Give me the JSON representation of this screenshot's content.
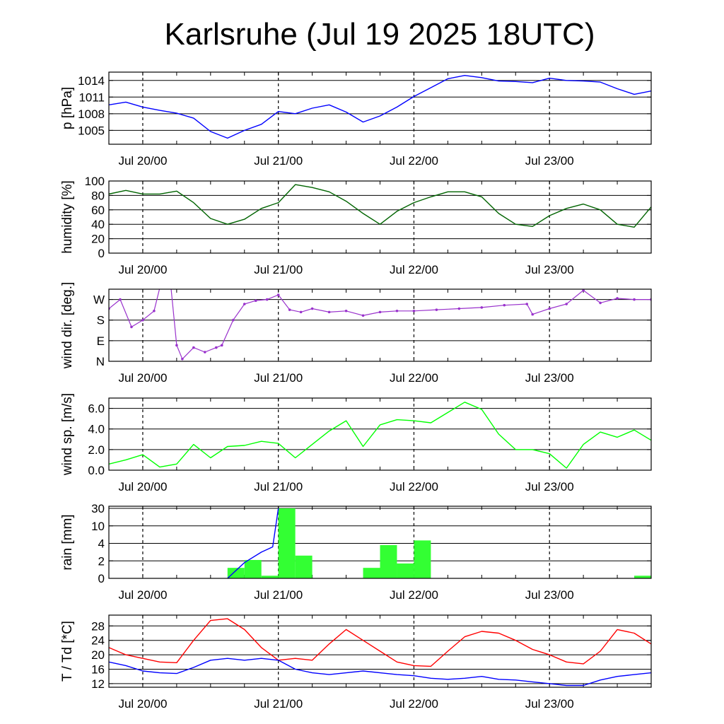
{
  "title": "Karlsruhe (Jul 19 2025 18UTC)",
  "chart_data": {
    "type": "line",
    "x_range": [
      "2025-07-19T18:00",
      "2025-07-23T18:00"
    ],
    "x_ticks": [
      {
        "x": "2025-07-20T00:00",
        "label": "Jul 20/00"
      },
      {
        "x": "2025-07-21T00:00",
        "label": "Jul 21/00"
      },
      {
        "x": "2025-07-22T00:00",
        "label": "Jul 22/00"
      },
      {
        "x": "2025-07-23T00:00",
        "label": "Jul 23/00"
      }
    ],
    "grid": "horizontal at y ticks, dashed vertical at day boundaries",
    "panels": [
      {
        "id": "pressure",
        "ylabel": "p [hPa]",
        "ylim": [
          1002.5,
          1015.5
        ],
        "yticks": [
          1005,
          1008,
          1011,
          1014
        ],
        "yticklabels": [
          "1005",
          "1008",
          "1011",
          "1014"
        ],
        "series": [
          {
            "color": "#0000ff",
            "style": "line",
            "x": [
              "2025-07-19T18:00",
              "2025-07-19T21:00",
              "2025-07-20T00:00",
              "2025-07-20T03:00",
              "2025-07-20T06:00",
              "2025-07-20T09:00",
              "2025-07-20T12:00",
              "2025-07-20T15:00",
              "2025-07-20T18:00",
              "2025-07-20T21:00",
              "2025-07-21T00:00",
              "2025-07-21T03:00",
              "2025-07-21T06:00",
              "2025-07-21T09:00",
              "2025-07-21T12:00",
              "2025-07-21T15:00",
              "2025-07-21T18:00",
              "2025-07-21T21:00",
              "2025-07-22T00:00",
              "2025-07-22T03:00",
              "2025-07-22T06:00",
              "2025-07-22T09:00",
              "2025-07-22T12:00",
              "2025-07-22T15:00",
              "2025-07-22T18:00",
              "2025-07-22T21:00",
              "2025-07-23T00:00",
              "2025-07-23T03:00",
              "2025-07-23T06:00",
              "2025-07-23T09:00",
              "2025-07-23T12:00",
              "2025-07-23T15:00",
              "2025-07-23T18:00"
            ],
            "y": [
              1009.6,
              1010.1,
              1009.2,
              1008.6,
              1008.1,
              1007.2,
              1004.8,
              1003.6,
              1005.0,
              1006.1,
              1008.4,
              1008.0,
              1009.0,
              1009.6,
              1008.3,
              1006.5,
              1007.6,
              1009.2,
              1011.1,
              1012.7,
              1014.3,
              1014.9,
              1014.5,
              1013.9,
              1013.8,
              1013.6,
              1014.4,
              1014.0,
              1013.9,
              1013.7,
              1012.5,
              1011.5,
              1012.1
            ]
          }
        ]
      },
      {
        "id": "humidity",
        "ylabel": "humidity [%]",
        "ylim": [
          0,
          100
        ],
        "yticks": [
          0,
          20,
          40,
          60,
          80,
          100
        ],
        "yticklabels": [
          "0",
          "20",
          "40",
          "60",
          "80",
          "100"
        ],
        "series": [
          {
            "color": "#006400",
            "style": "line",
            "x": [
              "2025-07-19T18:00",
              "2025-07-19T21:00",
              "2025-07-20T00:00",
              "2025-07-20T03:00",
              "2025-07-20T06:00",
              "2025-07-20T09:00",
              "2025-07-20T12:00",
              "2025-07-20T15:00",
              "2025-07-20T18:00",
              "2025-07-20T21:00",
              "2025-07-21T00:00",
              "2025-07-21T03:00",
              "2025-07-21T06:00",
              "2025-07-21T09:00",
              "2025-07-21T12:00",
              "2025-07-21T15:00",
              "2025-07-21T18:00",
              "2025-07-21T21:00",
              "2025-07-22T00:00",
              "2025-07-22T03:00",
              "2025-07-22T06:00",
              "2025-07-22T09:00",
              "2025-07-22T12:00",
              "2025-07-22T15:00",
              "2025-07-22T18:00",
              "2025-07-22T21:00",
              "2025-07-23T00:00",
              "2025-07-23T03:00",
              "2025-07-23T06:00",
              "2025-07-23T09:00",
              "2025-07-23T12:00",
              "2025-07-23T15:00",
              "2025-07-23T18:00"
            ],
            "y": [
              82,
              87,
              82,
              82,
              86,
              70,
              48,
              40,
              47,
              62,
              70,
              95,
              91,
              85,
              72,
              55,
              40,
              58,
              70,
              78,
              85,
              85,
              78,
              55,
              40,
              37,
              52,
              62,
              68,
              60,
              40,
              36,
              64
            ]
          }
        ]
      },
      {
        "id": "wind_direction",
        "ylabel": "wind dir. [deg.]",
        "ylim": [
          0,
          315
        ],
        "yticks": [
          0,
          90,
          180,
          270
        ],
        "yticklabels": [
          "N",
          "E",
          "S",
          "W"
        ],
        "series": [
          {
            "color": "#9932cc",
            "style": "dots",
            "x": [
              "2025-07-19T18:00",
              "2025-07-19T20:00",
              "2025-07-19T22:00",
              "2025-07-20T00:00",
              "2025-07-20T02:00",
              "2025-07-20T03:00",
              "2025-07-20T04:00",
              "2025-07-20T05:00",
              "2025-07-20T06:00",
              "2025-07-20T07:00",
              "2025-07-20T09:00",
              "2025-07-20T11:00",
              "2025-07-20T13:00",
              "2025-07-20T14:00",
              "2025-07-20T16:00",
              "2025-07-20T18:00",
              "2025-07-20T20:00",
              "2025-07-20T22:00",
              "2025-07-21T00:00",
              "2025-07-21T02:00",
              "2025-07-21T04:00",
              "2025-07-21T06:00",
              "2025-07-21T09:00",
              "2025-07-21T12:00",
              "2025-07-21T15:00",
              "2025-07-21T18:00",
              "2025-07-21T21:00",
              "2025-07-22T00:00",
              "2025-07-22T04:00",
              "2025-07-22T08:00",
              "2025-07-22T12:00",
              "2025-07-22T16:00",
              "2025-07-22T20:00",
              "2025-07-22T21:00",
              "2025-07-23T00:00",
              "2025-07-23T03:00",
              "2025-07-23T06:00",
              "2025-07-23T09:00",
              "2025-07-23T12:00",
              "2025-07-23T15:00",
              "2025-07-23T18:00"
            ],
            "y": [
              230,
              270,
              150,
              180,
              220,
              320,
              320,
              320,
              70,
              10,
              60,
              40,
              60,
              70,
              180,
              250,
              265,
              270,
              290,
              225,
              215,
              230,
              215,
              220,
              200,
              215,
              220,
              220,
              225,
              230,
              235,
              245,
              250,
              205,
              230,
              250,
              310,
              255,
              275,
              270,
              270
            ]
          }
        ]
      },
      {
        "id": "wind_speed",
        "ylabel": "wind sp. [m/s]",
        "ylim": [
          0,
          7
        ],
        "yticks": [
          0,
          2,
          4,
          6
        ],
        "yticklabels": [
          "0.0",
          "2.0",
          "4.0",
          "6.0"
        ],
        "series": [
          {
            "color": "#00ff00",
            "style": "line",
            "x": [
              "2025-07-19T18:00",
              "2025-07-19T21:00",
              "2025-07-20T00:00",
              "2025-07-20T03:00",
              "2025-07-20T06:00",
              "2025-07-20T09:00",
              "2025-07-20T12:00",
              "2025-07-20T15:00",
              "2025-07-20T18:00",
              "2025-07-20T21:00",
              "2025-07-21T00:00",
              "2025-07-21T03:00",
              "2025-07-21T06:00",
              "2025-07-21T09:00",
              "2025-07-21T12:00",
              "2025-07-21T15:00",
              "2025-07-21T18:00",
              "2025-07-21T21:00",
              "2025-07-22T00:00",
              "2025-07-22T03:00",
              "2025-07-22T06:00",
              "2025-07-22T09:00",
              "2025-07-22T12:00",
              "2025-07-22T15:00",
              "2025-07-22T18:00",
              "2025-07-22T21:00",
              "2025-07-23T00:00",
              "2025-07-23T03:00",
              "2025-07-23T06:00",
              "2025-07-23T09:00",
              "2025-07-23T12:00",
              "2025-07-23T15:00",
              "2025-07-23T18:00"
            ],
            "y": [
              0.6,
              1.0,
              1.5,
              0.3,
              0.6,
              2.5,
              1.2,
              2.3,
              2.4,
              2.8,
              2.6,
              1.2,
              2.5,
              3.8,
              4.8,
              2.3,
              4.4,
              4.9,
              4.8,
              4.6,
              5.6,
              6.6,
              5.9,
              3.5,
              2.0,
              2.0,
              1.6,
              0.2,
              2.5,
              3.7,
              3.2,
              3.9,
              2.9
            ]
          }
        ]
      },
      {
        "id": "rain",
        "ylabel": "rain [mm]",
        "ylim": [
          0,
          30
        ],
        "scale": "nonlinear",
        "yticks": [
          0,
          2,
          4,
          10,
          30
        ],
        "yticklabels": [
          "0",
          "2",
          "4",
          "10",
          "30"
        ],
        "bars": {
          "color": "#33ff33",
          "width_hours": 3,
          "x": [
            "2025-07-20T15:00",
            "2025-07-20T18:00",
            "2025-07-20T21:00",
            "2025-07-21T00:00",
            "2025-07-21T03:00",
            "2025-07-21T15:00",
            "2025-07-21T18:00",
            "2025-07-21T21:00",
            "2025-07-22T00:00",
            "2025-07-23T15:00"
          ],
          "values": [
            1.2,
            2.1,
            0.3,
            30,
            2.6,
            1.2,
            3.8,
            1.7,
            5.0,
            0.3
          ]
        },
        "series": [
          {
            "name": "accumulated",
            "color": "#0000ff",
            "style": "line",
            "x": [
              "2025-07-20T15:00",
              "2025-07-20T18:00",
              "2025-07-20T21:00",
              "2025-07-20T23:00",
              "2025-07-21T00:00"
            ],
            "y": [
              0,
              1.8,
              3.0,
              3.6,
              30
            ]
          }
        ]
      },
      {
        "id": "temperature",
        "ylabel": "T / Td [*C]",
        "ylim": [
          11,
          31
        ],
        "yticks": [
          12,
          16,
          20,
          24,
          28
        ],
        "yticklabels": [
          "12",
          "16",
          "20",
          "24",
          "28"
        ],
        "series": [
          {
            "color": "#ff0000",
            "style": "line",
            "x": [
              "2025-07-19T18:00",
              "2025-07-19T21:00",
              "2025-07-20T00:00",
              "2025-07-20T03:00",
              "2025-07-20T06:00",
              "2025-07-20T09:00",
              "2025-07-20T12:00",
              "2025-07-20T15:00",
              "2025-07-20T18:00",
              "2025-07-20T21:00",
              "2025-07-21T00:00",
              "2025-07-21T03:00",
              "2025-07-21T06:00",
              "2025-07-21T09:00",
              "2025-07-21T12:00",
              "2025-07-21T15:00",
              "2025-07-21T18:00",
              "2025-07-21T21:00",
              "2025-07-22T00:00",
              "2025-07-22T03:00",
              "2025-07-22T06:00",
              "2025-07-22T09:00",
              "2025-07-22T12:00",
              "2025-07-22T15:00",
              "2025-07-22T18:00",
              "2025-07-22T21:00",
              "2025-07-23T00:00",
              "2025-07-23T03:00",
              "2025-07-23T06:00",
              "2025-07-23T09:00",
              "2025-07-23T12:00",
              "2025-07-23T15:00",
              "2025-07-23T18:00"
            ],
            "y": [
              22,
              20,
              19,
              18,
              17.8,
              24,
              29.5,
              30,
              27,
              22,
              18.5,
              19,
              18.5,
              23,
              27,
              24,
              21,
              18,
              17,
              16.8,
              21,
              25,
              26.5,
              26,
              24,
              21.5,
              20,
              18,
              17.5,
              21,
              27,
              26,
              23
            ]
          },
          {
            "color": "#0000ff",
            "style": "line",
            "x": [
              "2025-07-19T18:00",
              "2025-07-19T21:00",
              "2025-07-20T00:00",
              "2025-07-20T03:00",
              "2025-07-20T06:00",
              "2025-07-20T09:00",
              "2025-07-20T12:00",
              "2025-07-20T15:00",
              "2025-07-20T18:00",
              "2025-07-20T21:00",
              "2025-07-21T00:00",
              "2025-07-21T03:00",
              "2025-07-21T06:00",
              "2025-07-21T09:00",
              "2025-07-21T12:00",
              "2025-07-21T15:00",
              "2025-07-21T18:00",
              "2025-07-21T21:00",
              "2025-07-22T00:00",
              "2025-07-22T03:00",
              "2025-07-22T06:00",
              "2025-07-22T09:00",
              "2025-07-22T12:00",
              "2025-07-22T15:00",
              "2025-07-22T18:00",
              "2025-07-22T21:00",
              "2025-07-23T00:00",
              "2025-07-23T03:00",
              "2025-07-23T06:00",
              "2025-07-23T09:00",
              "2025-07-23T12:00",
              "2025-07-23T15:00",
              "2025-07-23T18:00"
            ],
            "y": [
              18,
              17,
              15.5,
              15,
              14.8,
              16.5,
              18.5,
              19,
              18.5,
              19,
              18.5,
              16,
              15,
              14.5,
              15,
              15.5,
              15,
              14.5,
              14.2,
              13.5,
              13.2,
              13.5,
              14,
              13.2,
              13,
              12.5,
              12,
              11.5,
              11.5,
              13,
              14,
              14.5,
              15
            ]
          }
        ]
      }
    ]
  }
}
